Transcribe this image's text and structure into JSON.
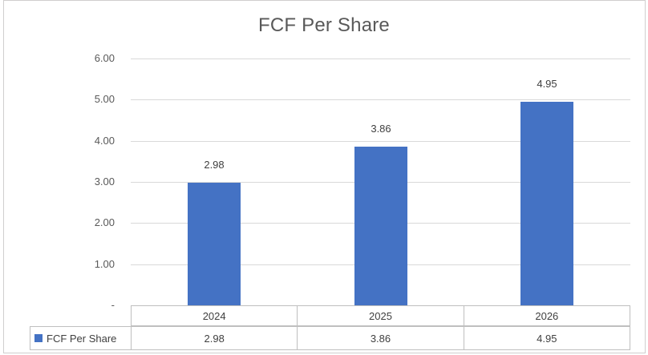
{
  "chart_data": {
    "type": "bar",
    "title": "FCF Per Share",
    "categories": [
      "2024",
      "2025",
      "2026"
    ],
    "series": [
      {
        "name": "FCF Per Share",
        "values": [
          2.98,
          3.86,
          4.95
        ],
        "labels": [
          "2.98",
          "3.86",
          "4.95"
        ]
      }
    ],
    "y_ticks": [
      {
        "value": 6,
        "label": "6.00"
      },
      {
        "value": 5,
        "label": "5.00"
      },
      {
        "value": 4,
        "label": "4.00"
      },
      {
        "value": 3,
        "label": "3.00"
      },
      {
        "value": 2,
        "label": "2.00"
      },
      {
        "value": 1,
        "label": "1.00"
      },
      {
        "value": 0,
        "label": "-"
      }
    ],
    "ylim": [
      0,
      6
    ],
    "grid": true,
    "legend_position": "data-table-left",
    "data_table_shown": true,
    "colors": {
      "bar": "#4472c4",
      "title_text": "#595959",
      "axis_text": "#595959",
      "label_text": "#404040",
      "gridline": "#d9d9d9",
      "table_border": "#bfbfbf",
      "frame_border": "#d0cece"
    }
  }
}
